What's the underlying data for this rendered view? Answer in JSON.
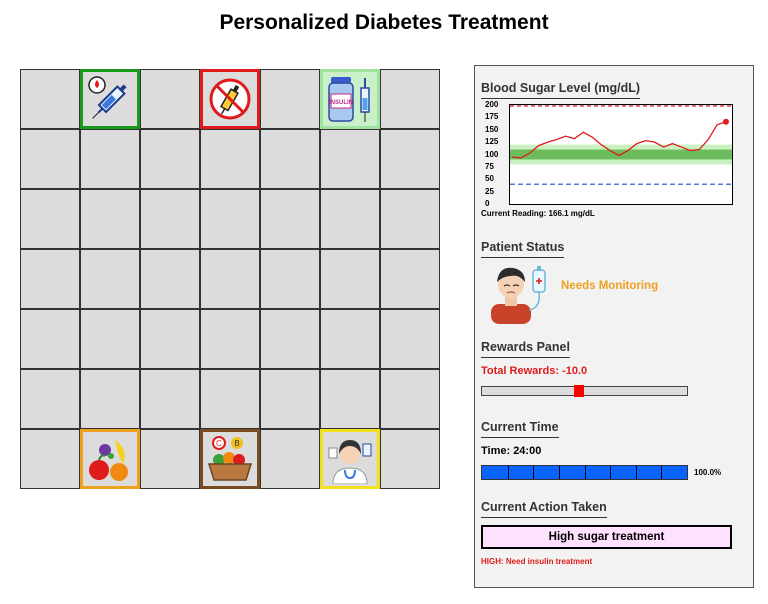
{
  "title": "Personalized Diabetes Treatment",
  "grid": {
    "rows": 7,
    "cols": 7,
    "tiles": [
      {
        "name": "insulin-syringe-tile",
        "row": 0,
        "col": 1,
        "border": "#1a9a1a",
        "bg": "#dcdcdc",
        "icon": "syringe-drop-icon"
      },
      {
        "name": "no-injection-tile",
        "row": 0,
        "col": 3,
        "border": "#e01b1b",
        "bg": "#dcdcdc",
        "icon": "no-syringe-icon"
      },
      {
        "name": "insulin-vial-tile",
        "row": 0,
        "col": 5,
        "border": "#9fe39f",
        "bg": "#c9f0c9",
        "icon": "insulin-vial-icon",
        "icon_text": "INSULIN"
      },
      {
        "name": "fruit-tile",
        "row": 6,
        "col": 1,
        "border": "#f0a020",
        "bg": "#dcdcdc",
        "icon": "fruits-icon"
      },
      {
        "name": "food-basket-tile",
        "row": 6,
        "col": 3,
        "border": "#7a4a20",
        "bg": "#dcdcdc",
        "icon": "food-basket-icon"
      },
      {
        "name": "doctor-tile",
        "row": 6,
        "col": 5,
        "border": "#f0e020",
        "bg": "#dcdcdc",
        "icon": "doctor-icon"
      }
    ]
  },
  "panel": {
    "blood_sugar_title": "Blood Sugar Level (mg/dL)",
    "current_reading": "Current Reading: 166.1 mg/dL",
    "patient_status_title": "Patient Status",
    "patient_status": "Needs Monitoring",
    "patient_status_color": "#f0a020",
    "rewards_title": "Rewards Panel",
    "total_rewards": "Total Rewards: -10.0",
    "rewards_position": 0.475,
    "time_title": "Current Time",
    "time_value": "Time: 24:00",
    "time_percent_label": "100.0%",
    "time_progress": 1.0,
    "action_title": "Current Action Taken",
    "action_value": "High sugar treatment",
    "action_note": "HIGH: Need insulin treatment"
  },
  "chart_data": {
    "type": "line",
    "ylim": [
      0,
      200
    ],
    "yticks": [
      "200",
      "175",
      "150",
      "125",
      "100",
      "75",
      "50",
      "25",
      "0"
    ],
    "x": [
      0,
      1,
      2,
      3,
      4,
      5,
      6,
      7,
      8,
      9,
      10,
      11,
      12,
      13,
      14,
      15,
      16,
      17,
      18,
      19,
      20,
      21,
      22,
      23,
      24
    ],
    "series": [
      {
        "values": [
          95,
          93,
          103,
          118,
          125,
          130,
          137,
          132,
          145,
          135,
          120,
          108,
          98,
          108,
          122,
          128,
          125,
          115,
          122,
          115,
          108,
          110,
          130,
          160,
          166.1
        ],
        "color": "#e01b1b"
      }
    ],
    "upper_limit": 200,
    "lower_limit": 40,
    "target_band": [
      90,
      110
    ],
    "outer_band": [
      80,
      120
    ]
  }
}
